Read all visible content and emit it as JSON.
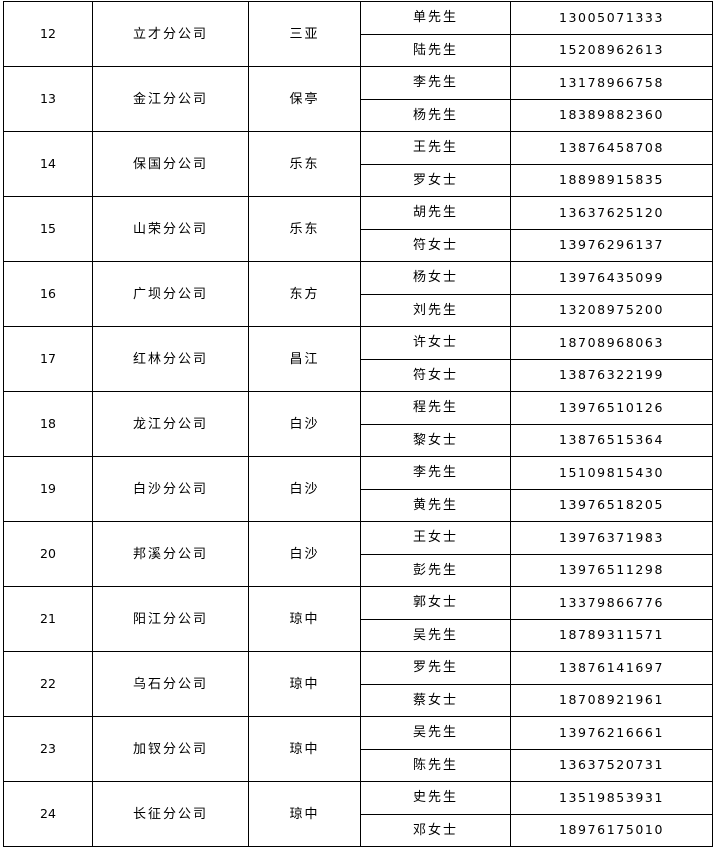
{
  "rows": [
    {
      "no": "12",
      "company": "立才分公司",
      "region": "三亚",
      "contacts": [
        {
          "name": "单先生",
          "phone": "13005071333"
        },
        {
          "name": "陆先生",
          "phone": "15208962613"
        }
      ]
    },
    {
      "no": "13",
      "company": "金江分公司",
      "region": "保亭",
      "contacts": [
        {
          "name": "李先生",
          "phone": "13178966758"
        },
        {
          "name": "杨先生",
          "phone": "18389882360"
        }
      ]
    },
    {
      "no": "14",
      "company": "保国分公司",
      "region": "乐东",
      "contacts": [
        {
          "name": "王先生",
          "phone": "13876458708"
        },
        {
          "name": "罗女士",
          "phone": "18898915835"
        }
      ]
    },
    {
      "no": "15",
      "company": "山荣分公司",
      "region": "乐东",
      "contacts": [
        {
          "name": "胡先生",
          "phone": "13637625120"
        },
        {
          "name": "符女士",
          "phone": "13976296137"
        }
      ]
    },
    {
      "no": "16",
      "company": "广坝分公司",
      "region": "东方",
      "contacts": [
        {
          "name": "杨女士",
          "phone": "13976435099"
        },
        {
          "name": "刘先生",
          "phone": "13208975200"
        }
      ]
    },
    {
      "no": "17",
      "company": "红林分公司",
      "region": "昌江",
      "contacts": [
        {
          "name": "许女士",
          "phone": "18708968063"
        },
        {
          "name": "符女士",
          "phone": "13876322199"
        }
      ]
    },
    {
      "no": "18",
      "company": "龙江分公司",
      "region": "白沙",
      "contacts": [
        {
          "name": "程先生",
          "phone": "13976510126"
        },
        {
          "name": "黎女士",
          "phone": "13876515364"
        }
      ]
    },
    {
      "no": "19",
      "company": "白沙分公司",
      "region": "白沙",
      "contacts": [
        {
          "name": "李先生",
          "phone": "15109815430"
        },
        {
          "name": "黄先生",
          "phone": "13976518205"
        }
      ]
    },
    {
      "no": "20",
      "company": "邦溪分公司",
      "region": "白沙",
      "contacts": [
        {
          "name": "王女士",
          "phone": "13976371983"
        },
        {
          "name": "彭先生",
          "phone": "13976511298"
        }
      ]
    },
    {
      "no": "21",
      "company": "阳江分公司",
      "region": "琼中",
      "contacts": [
        {
          "name": "郭女士",
          "phone": "13379866776"
        },
        {
          "name": "吴先生",
          "phone": "18789311571"
        }
      ]
    },
    {
      "no": "22",
      "company": "乌石分公司",
      "region": "琼中",
      "contacts": [
        {
          "name": "罗先生",
          "phone": "13876141697"
        },
        {
          "name": "蔡女士",
          "phone": "18708921961"
        }
      ]
    },
    {
      "no": "23",
      "company": "加钗分公司",
      "region": "琼中",
      "contacts": [
        {
          "name": "吴先生",
          "phone": "13976216661"
        },
        {
          "name": "陈先生",
          "phone": "13637520731"
        }
      ]
    },
    {
      "no": "24",
      "company": "长征分公司",
      "region": "琼中",
      "contacts": [
        {
          "name": "史先生",
          "phone": "13519853931"
        },
        {
          "name": "邓女士",
          "phone": "18976175010"
        }
      ]
    }
  ]
}
